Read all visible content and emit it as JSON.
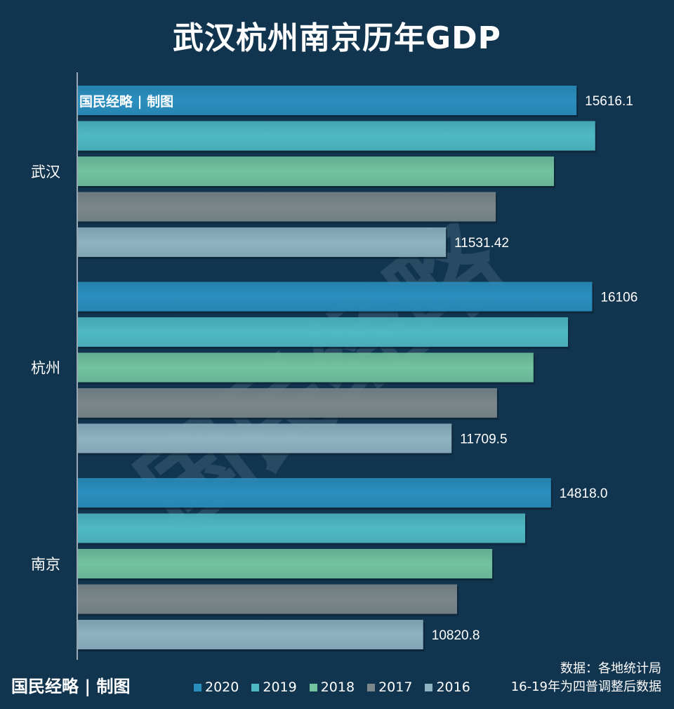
{
  "chart_data": {
    "type": "bar",
    "orientation": "horizontal",
    "title": "武汉杭州南京历年GDP",
    "categories": [
      "武汉",
      "杭州",
      "南京"
    ],
    "series": [
      {
        "name": "2020",
        "color": "#2a8fbf",
        "values": [
          15616.1,
          16106,
          14818.0
        ],
        "labels": [
          "15616.1",
          "16106",
          "14818.0"
        ]
      },
      {
        "name": "2019",
        "color": "#4fbac4",
        "values": [
          16200,
          15350,
          14010
        ],
        "labels": [
          "",
          "",
          ""
        ]
      },
      {
        "name": "2018",
        "color": "#72c3a0",
        "values": [
          14910,
          14270,
          12980
        ],
        "labels": [
          "",
          "",
          ""
        ]
      },
      {
        "name": "2017",
        "color": "#7b878a",
        "values": [
          13090,
          13130,
          11880
        ],
        "labels": [
          "",
          "",
          ""
        ]
      },
      {
        "name": "2016",
        "color": "#8fb3c2",
        "values": [
          11531.42,
          11709.5,
          10820.8
        ],
        "labels": [
          "11531.42",
          "11709.5",
          "10820.8"
        ]
      }
    ],
    "xlim": [
      0,
      18000
    ],
    "grid": false,
    "legend": "bottom"
  },
  "brand": "国民经略 | 制图",
  "watermark": "国民经略",
  "source_line1": "数据：各地统计局",
  "source_line2": "16-19年为四普调整后数据"
}
